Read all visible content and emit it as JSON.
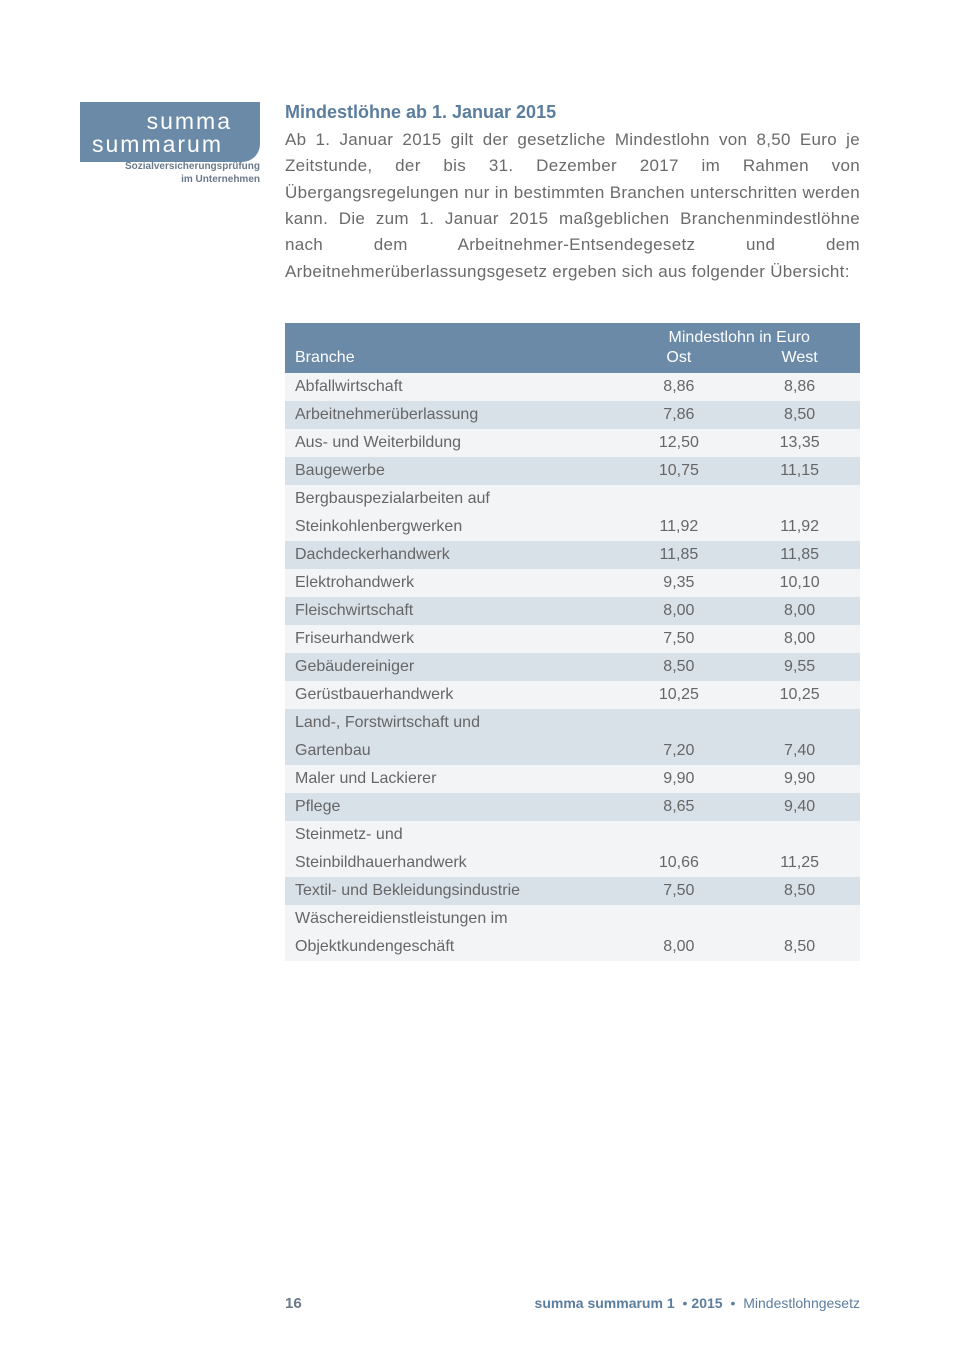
{
  "logo": {
    "line1": "summa",
    "line2": "summarum",
    "sub1": "Sozialversicherungsprüfung",
    "sub2": "im Unternehmen",
    "bg_color": "#6a8aa8",
    "text_color": "#ffffff"
  },
  "heading": "Mindestlöhne ab 1. Januar 2015",
  "heading_color": "#5b7d9e",
  "body": "Ab 1. Januar 2015 gilt der gesetzliche Mindestlohn von 8,50 Euro je Zeitstunde, der bis 31. Dezember 2017 im Rahmen von Übergangsregelungen nur in bestimmten Branchen unterschritten werden kann. Die zum 1. Januar 2015 maßgeblichen Branchenmindestlöhne nach dem Arbeitnehmer-Entsendegesetz und dem Arbeitnehmerüberlassungsgesetz ergeben sich aus folgender Übersicht:",
  "table": {
    "super_header": "Mindestlohn in Euro",
    "columns": [
      "Branche",
      "Ost",
      "West"
    ],
    "header_bg": "#6a8aa8",
    "header_color": "#ffffff",
    "row_odd_bg": "#f2f4f6",
    "row_even_bg": "#d8e0e8",
    "text_color": "#666666",
    "rows": [
      {
        "label": "Abfallwirtschaft",
        "ost": "8,86",
        "west": "8,86"
      },
      {
        "label": "Arbeitnehmerüberlassung",
        "ost": "7,86",
        "west": "8,50"
      },
      {
        "label": "Aus- und Weiterbildung",
        "ost": "12,50",
        "west": "13,35"
      },
      {
        "label": "Baugewerbe",
        "ost": "10,75",
        "west": "11,15"
      },
      {
        "label": "Bergbauspezialarbeiten auf",
        "ost": "",
        "west": ""
      },
      {
        "label": "Steinkohlenbergwerken",
        "ost": "11,92",
        "west": "11,92",
        "continuation": true
      },
      {
        "label": "Dachdeckerhandwerk",
        "ost": "11,85",
        "west": "11,85"
      },
      {
        "label": "Elektrohandwerk",
        "ost": "9,35",
        "west": "10,10"
      },
      {
        "label": "Fleischwirtschaft",
        "ost": "8,00",
        "west": "8,00"
      },
      {
        "label": "Friseurhandwerk",
        "ost": "7,50",
        "west": "8,00"
      },
      {
        "label": "Gebäudereiniger",
        "ost": "8,50",
        "west": "9,55"
      },
      {
        "label": "Gerüstbauerhandwerk",
        "ost": "10,25",
        "west": "10,25"
      },
      {
        "label": "Land-, Forstwirtschaft und",
        "ost": "",
        "west": ""
      },
      {
        "label": "Gartenbau",
        "ost": "7,20",
        "west": "7,40",
        "continuation": true
      },
      {
        "label": "Maler und Lackierer",
        "ost": "9,90",
        "west": "9,90"
      },
      {
        "label": "Pflege",
        "ost": "8,65",
        "west": "9,40"
      },
      {
        "label": "Steinmetz- und",
        "ost": "",
        "west": ""
      },
      {
        "label": "Steinbildhauerhandwerk",
        "ost": "10,66",
        "west": "11,25",
        "continuation": true
      },
      {
        "label": "Textil- und Bekleidungsindustrie",
        "ost": "7,50",
        "west": "8,50"
      },
      {
        "label": "Wäschereidienstleistungen im",
        "ost": "",
        "west": ""
      },
      {
        "label": "Objektkundengeschäft",
        "ost": "8,00",
        "west": "8,50",
        "continuation": true
      }
    ]
  },
  "footer": {
    "page": "16",
    "brand": "summa summarum 1",
    "sep": "•",
    "year": "2015",
    "topic": "Mindestlohngesetz",
    "color": "#5b7d9e"
  }
}
